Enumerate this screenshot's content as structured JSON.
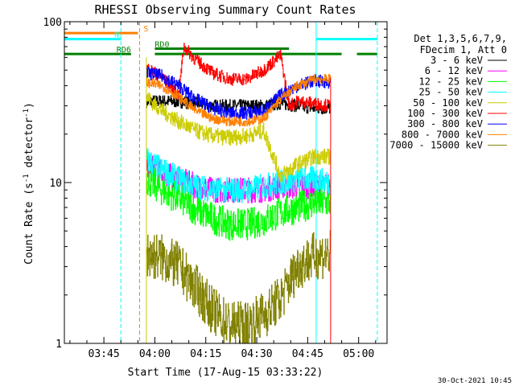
{
  "chart_data": {
    "type": "line",
    "title": "RHESSI Observing Summary Count Rates",
    "xlabel": "Start Time (17-Aug-15 03:33:22)",
    "ylabel_main": "Count Rate (s",
    "ylabel_sup1": "-1",
    "ylabel_mid": " detector",
    "ylabel_sup2": "-1",
    "ylabel_end": ")",
    "yscale": "log",
    "xlim": [
      "03:33:22",
      "05:08:22"
    ],
    "ylim": [
      1,
      100
    ],
    "x_ticks": [
      "03:45",
      "04:00",
      "04:15",
      "04:30",
      "04:45",
      "05:00"
    ],
    "y_ticks": [
      "1",
      "10",
      "100"
    ],
    "timestamp": "30-Oct-2021 10:45",
    "legend_header": [
      "Det 1,3,5,6,7,9,",
      "FDecim 1, Att 0"
    ],
    "legend_position": "right",
    "flag_labels": {
      "S": "S",
      "N": "N",
      "RD0": "RD0",
      "RD6": "RD6"
    },
    "flags": [
      {
        "label": "S",
        "color": "#ff7f00",
        "y_level": 85,
        "segments": [
          [
            "03:33:22",
            "03:55:00"
          ]
        ]
      },
      {
        "label": "N",
        "color": "#00ffff",
        "y_level": 78,
        "segments": [
          [
            "03:33:22",
            "03:50:00"
          ],
          [
            "04:47:30",
            "05:05:30"
          ]
        ]
      },
      {
        "label": "RD0",
        "color": "#008000",
        "y_level": 68,
        "segments": [
          [
            "04:00:00",
            "04:39:30"
          ]
        ]
      },
      {
        "label": "RD6",
        "color": "#008000",
        "y_level": 63,
        "segments": [
          [
            "03:33:22",
            "03:53:00"
          ],
          [
            "04:00:00",
            "04:55:00"
          ],
          [
            "04:59:30",
            "05:05:30"
          ]
        ]
      }
    ],
    "vlines": [
      {
        "time": "03:50:00",
        "color": "#00ffff",
        "dash": true
      },
      {
        "time": "03:55:30",
        "color": "#ff7f00",
        "dash": true
      },
      {
        "time": "04:47:30",
        "color": "#00ffff",
        "dash": false
      },
      {
        "time": "05:05:30",
        "color": "#00ffff",
        "dash": true
      }
    ],
    "data_window": [
      "03:57:30",
      "04:51:45"
    ],
    "series": [
      {
        "name": "3 - 6 keV",
        "color": "#000000",
        "x": [
          "03:57:30",
          "04:02",
          "04:07",
          "04:12",
          "04:17",
          "04:22",
          "04:27",
          "04:32",
          "04:37",
          "04:42",
          "04:47",
          "04:51:45"
        ],
        "y": [
          32,
          32,
          32,
          31,
          30,
          30,
          30,
          30,
          31,
          30,
          29,
          29
        ],
        "noise": 0.04
      },
      {
        "name": "6 - 12 keV",
        "color": "#ff00ff",
        "x": [
          "03:57:30",
          "04:02",
          "04:07",
          "04:12",
          "04:17",
          "04:22",
          "04:27",
          "04:32",
          "04:37",
          "04:42",
          "04:47",
          "04:51:45"
        ],
        "y": [
          13,
          11.5,
          10.5,
          9.5,
          9,
          9,
          9,
          9,
          9.5,
          9.5,
          9.5,
          9.5
        ],
        "noise": 0.08
      },
      {
        "name": "12 - 25 keV",
        "color": "#00ff00",
        "x": [
          "03:57:30",
          "04:02",
          "04:07",
          "04:12",
          "04:17",
          "04:22",
          "04:27",
          "04:32",
          "04:37",
          "04:42",
          "04:47",
          "04:51:45"
        ],
        "y": [
          10.5,
          9,
          8,
          6.8,
          6,
          5.5,
          5.5,
          5.8,
          6.5,
          7,
          7.5,
          7.5
        ],
        "noise": 0.1
      },
      {
        "name": "25 - 50 keV",
        "color": "#00ffff",
        "x": [
          "03:57:30",
          "04:02",
          "04:07",
          "04:12",
          "04:17",
          "04:22",
          "04:27",
          "04:32",
          "04:37",
          "04:42",
          "04:47",
          "04:51:45"
        ],
        "y": [
          14,
          12,
          10.5,
          9.5,
          9,
          9,
          9,
          9.5,
          10,
          10.5,
          10.5,
          10
        ],
        "noise": 0.08
      },
      {
        "name": "50 - 100 keV",
        "color": "#cccc00",
        "x": [
          "03:57:30",
          "04:02",
          "04:07",
          "04:12",
          "04:17",
          "04:22",
          "04:27",
          "04:32",
          "04:37",
          "04:42",
          "04:47",
          "04:51:45"
        ],
        "y": [
          34,
          28,
          24,
          21,
          19.5,
          19,
          19.5,
          21,
          11,
          13,
          14.5,
          14.5
        ],
        "noise": 0.05
      },
      {
        "name": "100 - 300 keV",
        "color": "#ff0000",
        "x": [
          "03:57:30",
          "04:02",
          "04:07",
          "04:08:30",
          "04:12",
          "04:17",
          "04:22",
          "04:27",
          "04:32",
          "04:37",
          "04:39:30",
          "04:42",
          "04:47",
          "04:51:45"
        ],
        "y": [
          52,
          45,
          35,
          70,
          58,
          48,
          44,
          44,
          50,
          62,
          30,
          32,
          31,
          30
        ],
        "noise": 0.04
      },
      {
        "name": "300 - 800 keV",
        "color": "#0000ff",
        "x": [
          "03:57:30",
          "04:02",
          "04:07",
          "04:12",
          "04:17",
          "04:22",
          "04:27",
          "04:32",
          "04:37",
          "04:42",
          "04:47",
          "04:51:45"
        ],
        "y": [
          48,
          46,
          40,
          33,
          29,
          27,
          27,
          28,
          35,
          40,
          43,
          42
        ],
        "noise": 0.04
      },
      {
        "name": "800 - 7000 keV",
        "color": "#ff7f00",
        "x": [
          "03:57:30",
          "04:02",
          "04:07",
          "04:12",
          "04:17",
          "04:22",
          "04:27",
          "04:32",
          "04:37",
          "04:42",
          "04:47",
          "04:51:45"
        ],
        "y": [
          42,
          40,
          34,
          28,
          25,
          24,
          24,
          25,
          33,
          40,
          44,
          44
        ],
        "noise": 0.03
      },
      {
        "name": "7000 - 15000 keV",
        "color": "#808000",
        "x": [
          "03:57:30",
          "04:02",
          "04:07",
          "04:12",
          "04:17",
          "04:22",
          "04:27",
          "04:32",
          "04:37",
          "04:42",
          "04:47",
          "04:51:45"
        ],
        "y": [
          3.6,
          3.4,
          3,
          2.2,
          1.6,
          1.3,
          1.3,
          1.5,
          1.9,
          3,
          3.5,
          3.6
        ],
        "noise": 0.15
      }
    ]
  }
}
